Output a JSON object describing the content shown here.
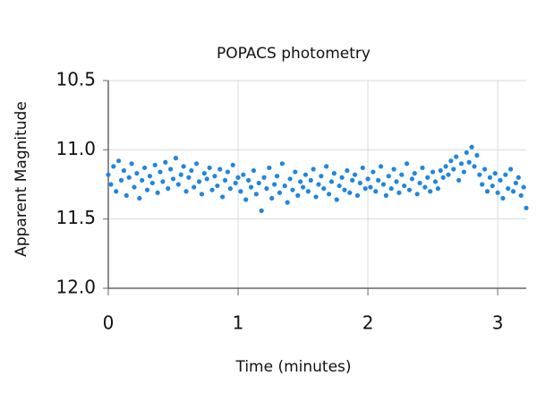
{
  "chart_data": {
    "type": "scatter",
    "title": "POPACS photometry",
    "xlabel": "Time (minutes)",
    "ylabel": "Apparent Magnitude",
    "color": "#1f86e0",
    "grid": true,
    "xlim": [
      0,
      3.22
    ],
    "xticks": [
      0,
      1,
      2,
      3
    ],
    "ylim": [
      12.0,
      10.5
    ],
    "yticks": [
      10.5,
      {
        "value": 11,
        "label": "11.0"
      },
      11.5,
      {
        "value": 12,
        "label": "12.0"
      }
    ],
    "x": [
      0.0,
      0.02,
      0.04,
      0.06,
      0.08,
      0.1,
      0.12,
      0.14,
      0.16,
      0.18,
      0.2,
      0.22,
      0.24,
      0.26,
      0.28,
      0.3,
      0.32,
      0.34,
      0.36,
      0.38,
      0.4,
      0.42,
      0.44,
      0.46,
      0.48,
      0.5,
      0.52,
      0.54,
      0.56,
      0.58,
      0.6,
      0.62,
      0.64,
      0.66,
      0.68,
      0.7,
      0.72,
      0.74,
      0.76,
      0.78,
      0.8,
      0.82,
      0.84,
      0.86,
      0.88,
      0.9,
      0.92,
      0.94,
      0.96,
      0.98,
      1.0,
      1.02,
      1.04,
      1.06,
      1.08,
      1.1,
      1.12,
      1.14,
      1.16,
      1.18,
      1.2,
      1.22,
      1.24,
      1.26,
      1.28,
      1.3,
      1.32,
      1.34,
      1.36,
      1.38,
      1.4,
      1.42,
      1.44,
      1.46,
      1.48,
      1.5,
      1.52,
      1.54,
      1.56,
      1.58,
      1.6,
      1.62,
      1.64,
      1.66,
      1.68,
      1.7,
      1.72,
      1.74,
      1.76,
      1.78,
      1.8,
      1.82,
      1.84,
      1.86,
      1.88,
      1.9,
      1.92,
      1.94,
      1.96,
      1.98,
      2.0,
      2.02,
      2.04,
      2.06,
      2.08,
      2.1,
      2.12,
      2.14,
      2.16,
      2.18,
      2.2,
      2.22,
      2.24,
      2.26,
      2.28,
      2.3,
      2.32,
      2.34,
      2.36,
      2.38,
      2.4,
      2.42,
      2.44,
      2.46,
      2.48,
      2.5,
      2.52,
      2.54,
      2.56,
      2.58,
      2.6,
      2.62,
      2.64,
      2.66,
      2.68,
      2.7,
      2.72,
      2.74,
      2.76,
      2.78,
      2.8,
      2.82,
      2.84,
      2.86,
      2.88,
      2.9,
      2.92,
      2.94,
      2.96,
      2.98,
      3.0,
      3.02,
      3.04,
      3.06,
      3.08,
      3.1,
      3.12,
      3.14,
      3.16,
      3.18,
      3.2,
      3.22
    ],
    "values": [
      11.18,
      11.25,
      11.12,
      11.3,
      11.08,
      11.22,
      11.15,
      11.33,
      11.2,
      11.1,
      11.27,
      11.17,
      11.35,
      11.22,
      11.13,
      11.29,
      11.19,
      11.24,
      11.11,
      11.31,
      11.16,
      11.23,
      11.09,
      11.28,
      11.14,
      11.21,
      11.06,
      11.25,
      11.18,
      11.12,
      11.3,
      11.2,
      11.15,
      11.27,
      11.1,
      11.23,
      11.32,
      11.17,
      11.21,
      11.13,
      11.29,
      11.19,
      11.26,
      11.14,
      11.34,
      11.22,
      11.16,
      11.28,
      11.11,
      11.24,
      11.2,
      11.3,
      11.18,
      11.36,
      11.22,
      11.27,
      11.15,
      11.32,
      11.24,
      11.44,
      11.2,
      11.28,
      11.13,
      11.35,
      11.25,
      11.19,
      11.31,
      11.1,
      11.26,
      11.38,
      11.21,
      11.29,
      11.16,
      11.33,
      11.23,
      11.27,
      11.18,
      11.3,
      11.22,
      11.14,
      11.34,
      11.25,
      11.19,
      11.28,
      11.12,
      11.32,
      11.23,
      11.17,
      11.36,
      11.26,
      11.2,
      11.29,
      11.15,
      11.31,
      11.22,
      11.18,
      11.33,
      11.24,
      11.13,
      11.28,
      11.21,
      11.27,
      11.16,
      11.3,
      11.22,
      11.12,
      11.25,
      11.33,
      11.19,
      11.28,
      11.14,
      11.23,
      11.31,
      11.18,
      11.26,
      11.1,
      11.29,
      11.21,
      11.17,
      11.32,
      11.24,
      11.13,
      11.27,
      11.2,
      11.3,
      11.16,
      11.23,
      11.28,
      11.15,
      11.2,
      11.12,
      11.18,
      11.08,
      11.14,
      11.05,
      11.22,
      11.1,
      11.16,
      11.02,
      11.09,
      10.98,
      11.12,
      11.04,
      11.18,
      11.25,
      11.14,
      11.3,
      11.2,
      11.26,
      11.17,
      11.31,
      11.22,
      11.35,
      11.18,
      11.28,
      11.14,
      11.3,
      11.24,
      11.2,
      11.33,
      11.27,
      11.42
    ]
  }
}
